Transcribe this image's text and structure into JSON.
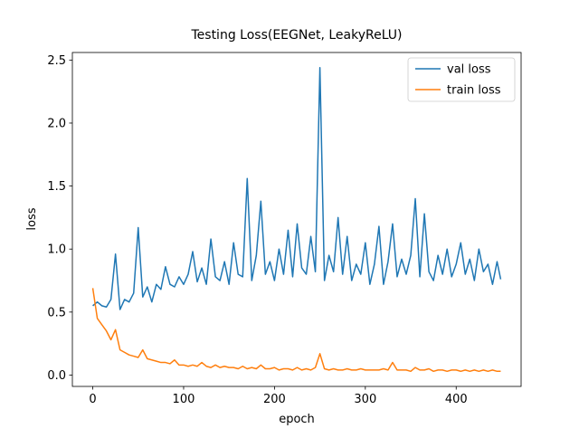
{
  "chart_data": {
    "type": "line",
    "title": "Testing Loss(EEGNet, LeakyReLU)",
    "x_label": "epoch",
    "y_label": "loss",
    "x": [
      0,
      5,
      10,
      15,
      20,
      25,
      30,
      35,
      40,
      45,
      50,
      55,
      60,
      65,
      70,
      75,
      80,
      85,
      90,
      95,
      100,
      105,
      110,
      115,
      120,
      125,
      130,
      135,
      140,
      145,
      150,
      155,
      160,
      165,
      170,
      175,
      180,
      185,
      190,
      195,
      200,
      205,
      210,
      215,
      220,
      225,
      230,
      235,
      240,
      245,
      250,
      255,
      260,
      265,
      270,
      275,
      280,
      285,
      290,
      295,
      300,
      305,
      310,
      315,
      320,
      325,
      330,
      335,
      340,
      345,
      350,
      355,
      360,
      365,
      370,
      375,
      380,
      385,
      390,
      395,
      400,
      405,
      410,
      415,
      420,
      425,
      430,
      435,
      440,
      445,
      449
    ],
    "series": [
      {
        "name": "val loss",
        "color": "#1f77b4",
        "values": [
          0.55,
          0.58,
          0.55,
          0.54,
          0.6,
          0.96,
          0.52,
          0.6,
          0.58,
          0.65,
          1.17,
          0.62,
          0.7,
          0.58,
          0.72,
          0.68,
          0.86,
          0.72,
          0.7,
          0.78,
          0.72,
          0.8,
          0.98,
          0.74,
          0.85,
          0.72,
          1.08,
          0.78,
          0.75,
          0.9,
          0.72,
          1.05,
          0.8,
          0.78,
          1.56,
          0.75,
          0.95,
          1.38,
          0.8,
          0.9,
          0.75,
          1.0,
          0.8,
          1.15,
          0.78,
          1.2,
          0.85,
          0.8,
          1.1,
          0.82,
          2.44,
          0.75,
          0.95,
          0.82,
          1.25,
          0.8,
          1.1,
          0.75,
          0.88,
          0.8,
          1.05,
          0.72,
          0.88,
          1.18,
          0.72,
          0.9,
          1.2,
          0.78,
          0.92,
          0.8,
          0.95,
          1.4,
          0.78,
          1.28,
          0.82,
          0.75,
          0.95,
          0.8,
          1.0,
          0.78,
          0.88,
          1.05,
          0.8,
          0.92,
          0.75,
          1.0,
          0.82,
          0.88,
          0.72,
          0.9,
          0.76
        ]
      },
      {
        "name": "train loss",
        "color": "#ff7f0e",
        "values": [
          0.69,
          0.45,
          0.4,
          0.35,
          0.28,
          0.36,
          0.2,
          0.18,
          0.16,
          0.15,
          0.14,
          0.2,
          0.13,
          0.12,
          0.11,
          0.1,
          0.1,
          0.09,
          0.12,
          0.08,
          0.08,
          0.07,
          0.08,
          0.07,
          0.1,
          0.07,
          0.06,
          0.08,
          0.06,
          0.07,
          0.06,
          0.06,
          0.05,
          0.07,
          0.05,
          0.06,
          0.05,
          0.08,
          0.05,
          0.05,
          0.06,
          0.04,
          0.05,
          0.05,
          0.04,
          0.06,
          0.04,
          0.05,
          0.04,
          0.06,
          0.17,
          0.05,
          0.04,
          0.05,
          0.04,
          0.04,
          0.05,
          0.04,
          0.04,
          0.05,
          0.04,
          0.04,
          0.04,
          0.04,
          0.05,
          0.04,
          0.1,
          0.04,
          0.04,
          0.04,
          0.03,
          0.06,
          0.04,
          0.04,
          0.05,
          0.03,
          0.04,
          0.04,
          0.03,
          0.04,
          0.04,
          0.03,
          0.04,
          0.03,
          0.04,
          0.03,
          0.04,
          0.03,
          0.04,
          0.03,
          0.03
        ]
      }
    ],
    "xlim": [
      -22.45,
      471.45
    ],
    "xticks": [
      0,
      100,
      200,
      300,
      400
    ],
    "ylim": [
      -0.09,
      2.56
    ],
    "yticks": [
      {
        "value": 0,
        "label": "0.0"
      },
      0.5,
      {
        "value": 1,
        "label": "1.0"
      },
      1.5,
      {
        "value": 2,
        "label": "2.0"
      },
      2.5
    ],
    "legend": "upper right"
  }
}
